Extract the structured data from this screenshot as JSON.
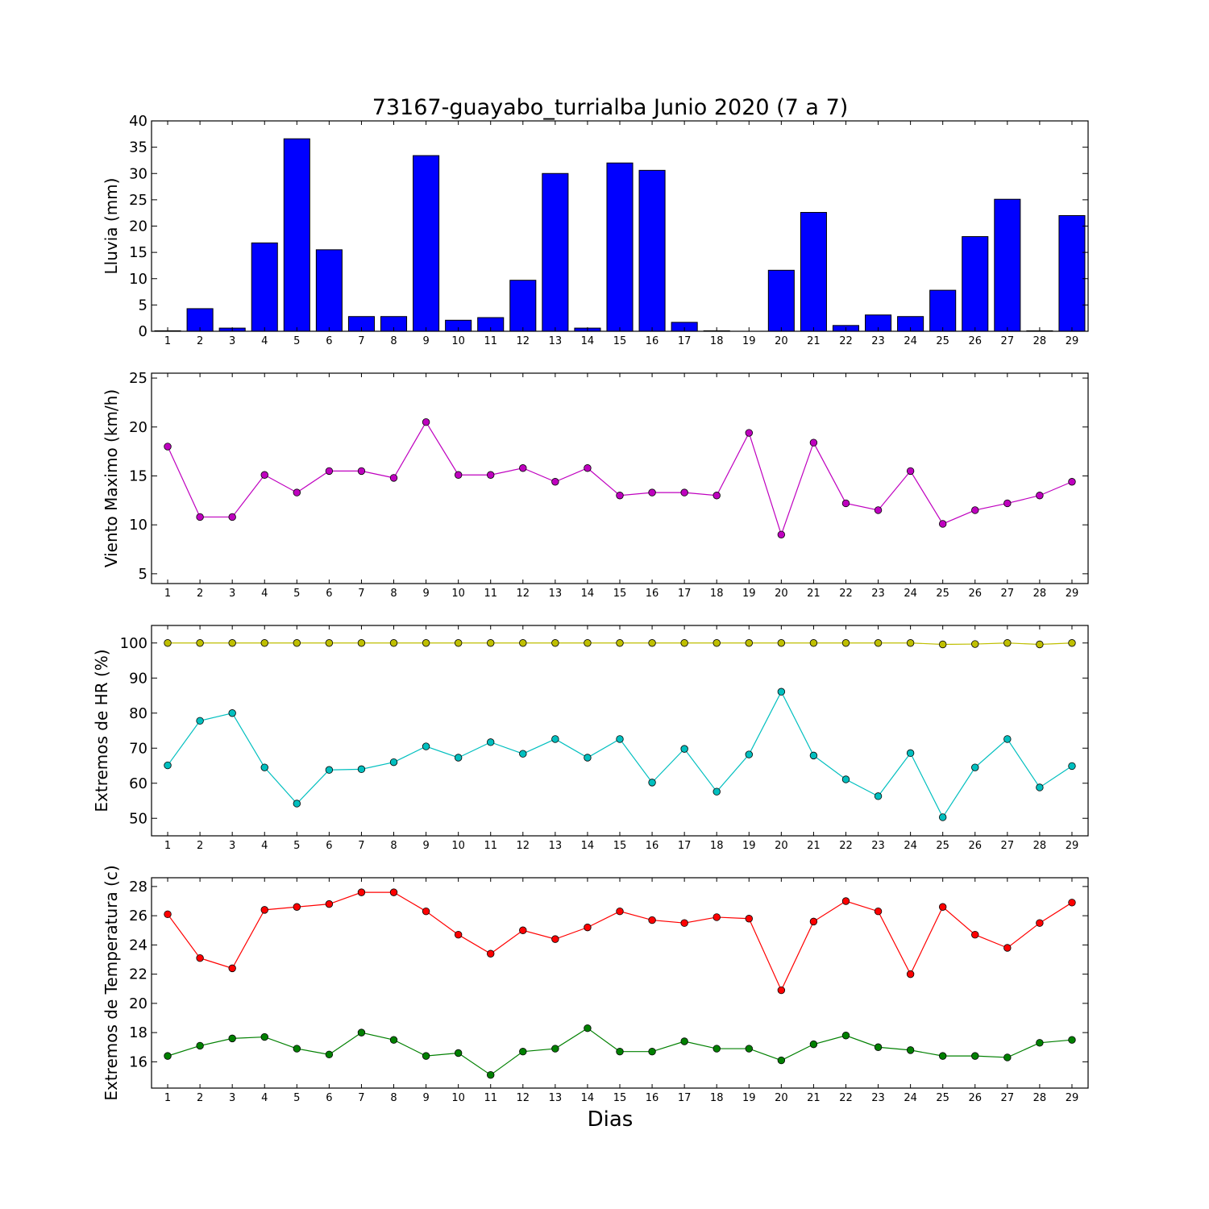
{
  "chart_data": [
    {
      "type": "bar",
      "title": "73167-guayabo_turrialba Junio 2020  (7 a 7)",
      "ylabel": "Lluvia (mm)",
      "ylim": [
        0,
        40
      ],
      "yticks": [
        0,
        5,
        10,
        15,
        20,
        25,
        30,
        35,
        40
      ],
      "x": [
        1,
        2,
        3,
        4,
        5,
        6,
        7,
        8,
        9,
        10,
        11,
        12,
        13,
        14,
        15,
        16,
        17,
        18,
        19,
        20,
        21,
        22,
        23,
        24,
        25,
        26,
        27,
        28,
        29
      ],
      "series": [
        {
          "values": [
            0.1,
            4.3,
            0.6,
            16.8,
            36.6,
            15.5,
            2.8,
            2.8,
            33.4,
            2.1,
            2.6,
            9.7,
            30.0,
            0.6,
            32.0,
            30.6,
            1.7,
            0.1,
            0.0,
            11.6,
            22.6,
            1.1,
            3.1,
            2.8,
            7.8,
            18.0,
            25.1,
            0.1,
            22.0
          ],
          "color": "#0000ff"
        }
      ]
    },
    {
      "type": "line",
      "ylabel": "Viento Maximo (km/h)",
      "ylim": [
        4,
        25.5
      ],
      "yticks": [
        5,
        10,
        15,
        20,
        25
      ],
      "x": [
        1,
        2,
        3,
        4,
        5,
        6,
        7,
        8,
        9,
        10,
        11,
        12,
        13,
        14,
        15,
        16,
        17,
        18,
        19,
        20,
        21,
        22,
        23,
        24,
        25,
        26,
        27,
        28,
        29
      ],
      "series": [
        {
          "values": [
            18.0,
            10.8,
            10.8,
            15.1,
            13.3,
            15.5,
            15.5,
            14.8,
            20.5,
            15.1,
            15.1,
            15.8,
            14.4,
            15.8,
            13.0,
            13.3,
            13.3,
            13.0,
            19.4,
            9.0,
            18.4,
            12.2,
            11.5,
            15.5,
            10.1,
            11.5,
            12.2,
            13.0,
            14.4
          ],
          "color": "#bf00bf"
        }
      ]
    },
    {
      "type": "line",
      "ylabel": "Extremos de HR (%)",
      "ylim": [
        45,
        105
      ],
      "yticks": [
        50,
        60,
        70,
        80,
        90,
        100
      ],
      "x": [
        1,
        2,
        3,
        4,
        5,
        6,
        7,
        8,
        9,
        10,
        11,
        12,
        13,
        14,
        15,
        16,
        17,
        18,
        19,
        20,
        21,
        22,
        23,
        24,
        25,
        26,
        27,
        28,
        29
      ],
      "series": [
        {
          "values": [
            100,
            100,
            100,
            100,
            100,
            100,
            100,
            100,
            100,
            100,
            100,
            100,
            100,
            100,
            100,
            100,
            100,
            100,
            100,
            100,
            100,
            100,
            100,
            100,
            99.6,
            99.7,
            100,
            99.6,
            100
          ],
          "color": "#bfbf00"
        },
        {
          "values": [
            65.1,
            77.8,
            80.0,
            64.5,
            54.2,
            63.8,
            64.0,
            66.0,
            70.5,
            67.3,
            71.7,
            68.4,
            72.6,
            67.3,
            72.6,
            60.2,
            69.8,
            57.6,
            68.2,
            86.1,
            67.9,
            61.1,
            56.3,
            68.6,
            50.3,
            64.5,
            72.6,
            58.8,
            64.9
          ],
          "color": "#00bfbf"
        }
      ]
    },
    {
      "type": "line",
      "ylabel": "Extremos de Temperatura (c)",
      "xlabel": "Dias",
      "ylim": [
        14.2,
        28.6
      ],
      "yticks": [
        16,
        18,
        20,
        22,
        24,
        26,
        28
      ],
      "x": [
        1,
        2,
        3,
        4,
        5,
        6,
        7,
        8,
        9,
        10,
        11,
        12,
        13,
        14,
        15,
        16,
        17,
        18,
        19,
        20,
        21,
        22,
        23,
        24,
        25,
        26,
        27,
        28,
        29
      ],
      "series": [
        {
          "values": [
            26.1,
            23.1,
            22.4,
            26.4,
            26.6,
            26.8,
            27.6,
            27.6,
            26.3,
            24.7,
            23.4,
            25.0,
            24.4,
            25.2,
            26.3,
            25.7,
            25.5,
            25.9,
            25.8,
            20.9,
            25.6,
            27.0,
            26.3,
            22.0,
            26.6,
            24.7,
            23.8,
            25.5,
            26.9
          ],
          "color": "#ff0000"
        },
        {
          "values": [
            16.4,
            17.1,
            17.6,
            17.7,
            16.9,
            16.5,
            18.0,
            17.5,
            16.4,
            16.6,
            15.1,
            16.7,
            16.9,
            18.3,
            16.7,
            16.7,
            17.4,
            16.9,
            16.9,
            16.1,
            17.2,
            17.8,
            17.0,
            16.8,
            16.4,
            16.4,
            16.3,
            17.3,
            17.5
          ],
          "color": "#008000"
        }
      ]
    }
  ]
}
